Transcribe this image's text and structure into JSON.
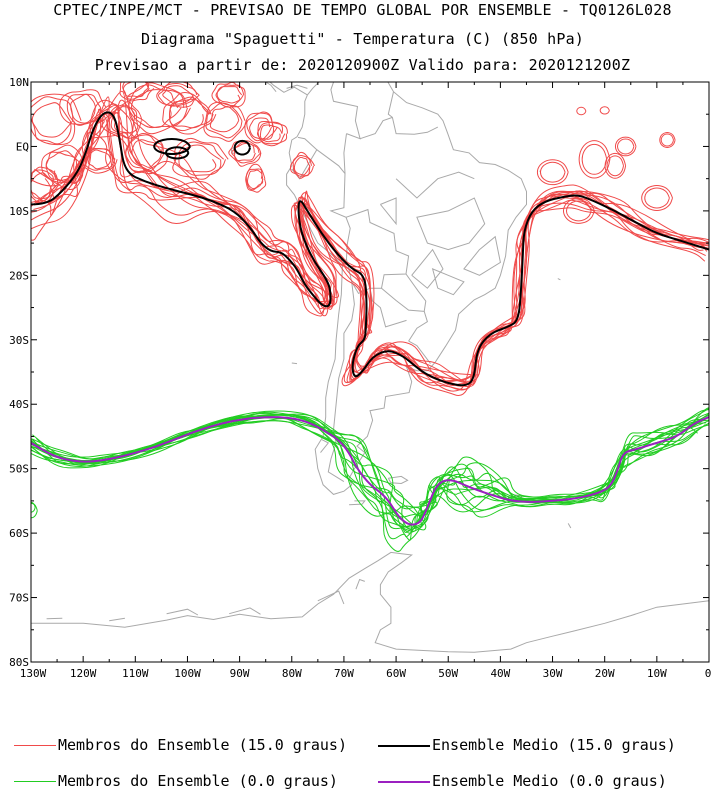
{
  "header": {
    "line1": "CPTEC/INPE/MCT - PREVISAO DE TEMPO GLOBAL POR ENSEMBLE - TQ0126L028",
    "line2": "Diagrama \"Spaguetti\" - Temperatura (C) (850 hPa)",
    "line3": "Previsao a partir de: 2020120900Z  Valido para: 2020121200Z"
  },
  "map": {
    "lat_labels": [
      "10N",
      "EQ",
      "10S",
      "20S",
      "30S",
      "40S",
      "50S",
      "60S",
      "70S",
      "80S"
    ],
    "lon_labels": [
      "130W",
      "120W",
      "110W",
      "100W",
      "90W",
      "80W",
      "70W",
      "60W",
      "50W",
      "40W",
      "30W",
      "20W",
      "10W",
      "0"
    ],
    "colors": {
      "members_15": "#f04a4a",
      "mean_15": "#000000",
      "members_0": "#22cc22",
      "mean_0": "#9b20c0",
      "land": "#a9a9a9"
    }
  },
  "legend": {
    "members_15": "Membros do Ensemble (15.0 graus)",
    "mean_15": "Ensemble Medio (15.0 graus)",
    "members_0": "Membros do Ensemble (0.0 graus)",
    "mean_0": "Ensemble Medio (0.0 graus)"
  }
}
